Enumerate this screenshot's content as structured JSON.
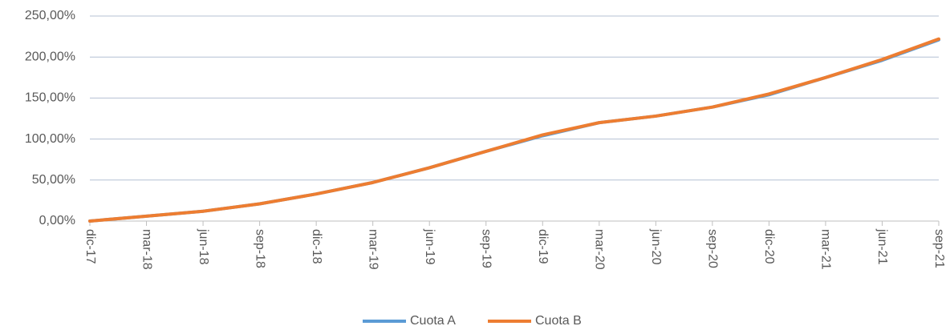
{
  "chart_data": {
    "type": "line",
    "categories": [
      "dic-17",
      "mar-18",
      "jun-18",
      "sep-18",
      "dic-18",
      "mar-19",
      "jun-19",
      "sep-19",
      "dic-19",
      "mar-20",
      "jun-20",
      "sep-20",
      "dic-20",
      "mar-21",
      "jun-21",
      "sep-21"
    ],
    "series": [
      {
        "name": "Cuota A",
        "color": "#5b9bd5",
        "values": [
          0,
          6,
          12,
          21,
          33,
          47,
          65,
          85,
          104,
          120,
          128,
          139,
          154,
          175,
          196,
          221
        ]
      },
      {
        "name": "Cuota B",
        "color": "#ed7d31",
        "values": [
          0,
          6,
          12,
          21,
          33,
          47,
          65,
          85,
          105,
          120,
          128,
          139,
          155,
          175,
          197,
          222
        ]
      }
    ],
    "ylim": [
      0,
      250
    ],
    "yticks": [
      {
        "value": 0,
        "label": "0,00%"
      },
      {
        "value": 50,
        "label": "50,00%"
      },
      {
        "value": 100,
        "label": "100,00%"
      },
      {
        "value": 150,
        "label": "150,00%"
      },
      {
        "value": 200,
        "label": "200,00%"
      },
      {
        "value": 250,
        "label": "250,00%"
      }
    ],
    "grid": true,
    "legend": "bottom"
  }
}
